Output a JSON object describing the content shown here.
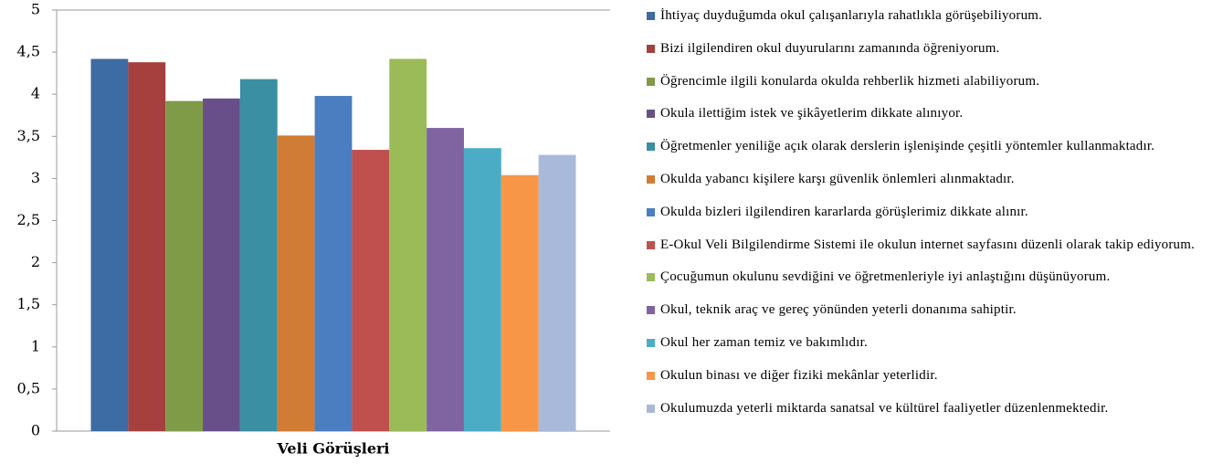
{
  "chart_data": {
    "type": "bar",
    "categories": [
      "Veli Görüşleri"
    ],
    "series": [
      {
        "name": "İhtiyaç duyduğumda okul çalışanlarıyla rahatlıkla görüşebiliyorum.",
        "color": "#3d6ba3",
        "values": [
          4.42
        ]
      },
      {
        "name": "Bizi ilgilendiren okul duyurularını zamanında öğreniyorum.",
        "color": "#a5403e",
        "values": [
          4.38
        ]
      },
      {
        "name": "Öğrencimle ilgili konularda okulda rehberlik hizmeti alabiliyorum.",
        "color": "#7f9b48",
        "values": [
          3.92
        ]
      },
      {
        "name": "Okula ilettiğim istek ve şikâyetlerim dikkate alınıyor.",
        "color": "#684f8a",
        "values": [
          3.95
        ]
      },
      {
        "name": "Öğretmenler yeniliğe açık olarak derslerin işlenişinde çeşitli yöntemler kullanmaktadır.",
        "color": "#3a8fa3",
        "values": [
          4.18
        ]
      },
      {
        "name": "Okulda yabancı kişilere karşı güvenlik önlemleri alınmaktadır.",
        "color": "#d07c35",
        "values": [
          3.51
        ]
      },
      {
        "name": "Okulda bizleri ilgilendiren kararlarda görüşlerimiz dikkate alınır.",
        "color": "#4a7ec0",
        "values": [
          3.98
        ]
      },
      {
        "name": "E-Okul Veli Bilgilendirme Sistemi ile okulun internet sayfasını düzenli olarak takip ediyorum.",
        "color": "#c0504d",
        "values": [
          3.34
        ]
      },
      {
        "name": "Çocuğumun okulunu sevdiğini ve öğretmenleriyle iyi anlaştığını düşünüyorum.",
        "color": "#9bbb59",
        "values": [
          4.42
        ]
      },
      {
        "name": "Okul, teknik araç ve gereç yönünden yeterli donanıma sahiptir.",
        "color": "#8064a2",
        "values": [
          3.6
        ]
      },
      {
        "name": "Okul her zaman temiz ve bakımlıdır.",
        "color": "#4bacc6",
        "values": [
          3.36
        ]
      },
      {
        "name": "Okulun binası ve diğer fiziki mekânlar yeterlidir.",
        "color": "#f79646",
        "values": [
          3.04
        ]
      },
      {
        "name": "Okulumuzda yeterli miktarda sanatsal ve kültürel faaliyetler düzenlenmektedir.",
        "color": "#a9b9d9",
        "values": [
          3.28
        ]
      }
    ],
    "ylim": [
      0,
      5
    ],
    "yticks": [
      0,
      {
        "value": 0.5,
        "label": "0,5"
      },
      1,
      {
        "value": 1.5,
        "label": "1,5"
      },
      2,
      {
        "value": 2.5,
        "label": "2,5"
      },
      3,
      {
        "value": 3.5,
        "label": "3,5"
      },
      4,
      {
        "value": 4.5,
        "label": "4,5"
      },
      5
    ],
    "grid": false,
    "legend": "right"
  }
}
